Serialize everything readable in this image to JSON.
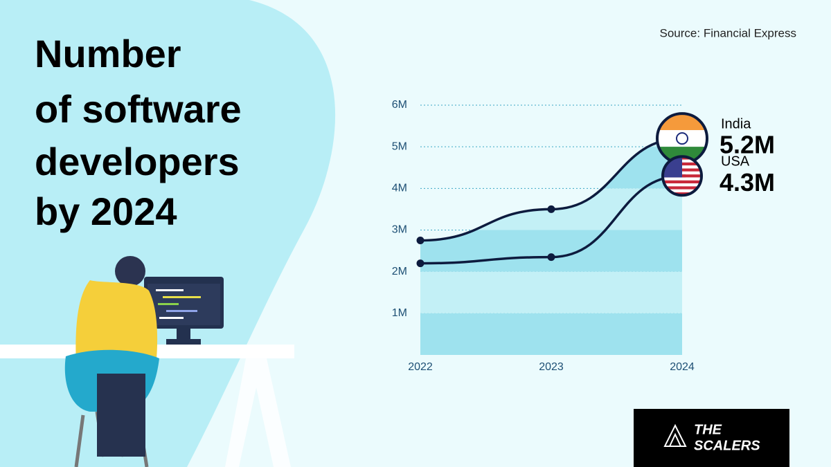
{
  "header": {
    "title": "Number of software developers by 2024",
    "source": "Source: Financial Express"
  },
  "logo": {
    "line1": "THE",
    "line2": "SCALERS"
  },
  "chart_data": {
    "type": "line",
    "categories": [
      "2022",
      "2023",
      "2024"
    ],
    "series": [
      {
        "name": "India",
        "color": "#0d1b3e",
        "values": [
          2750000,
          3500000,
          5200000
        ],
        "value_labels": [
          null,
          null,
          "5.2M"
        ]
      },
      {
        "name": "USA",
        "color": "#0d1b3e",
        "values": [
          2200000,
          2350000,
          4300000
        ],
        "value_labels": [
          null,
          null,
          "4.3M"
        ]
      }
    ],
    "ylim": [
      0,
      6000000
    ],
    "yticks": [
      {
        "value": 1000000,
        "label": "1M"
      },
      {
        "value": 2000000,
        "label": "2M"
      },
      {
        "value": 3000000,
        "label": "3M"
      },
      {
        "value": 4000000,
        "label": "4M"
      },
      {
        "value": 5000000,
        "label": "5M"
      },
      {
        "value": 6000000,
        "label": "6M"
      }
    ],
    "grid": true
  }
}
